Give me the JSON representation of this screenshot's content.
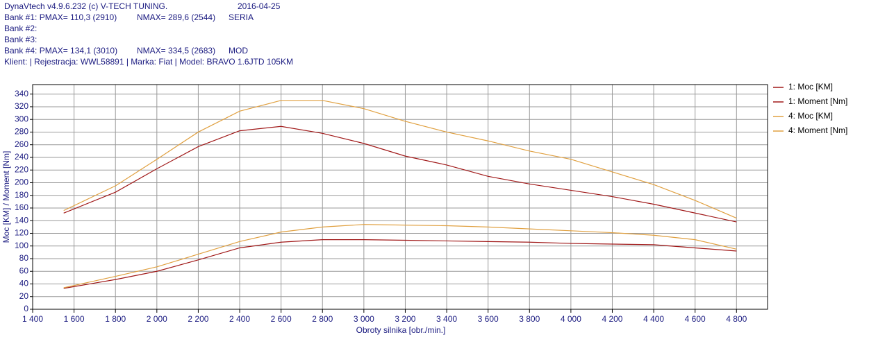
{
  "header": {
    "lines": [
      [
        "DynaVtech v4.9.6.232 (c) V-TECH TUNING.",
        "2016-04-25"
      ],
      [
        "Bank #1: PMAX= 110,3 (2910)",
        "NMAX= 289,6 (2544)",
        "SERIA"
      ],
      [
        "Bank #2:"
      ],
      [
        "Bank #3:"
      ],
      [
        "Bank #4: PMAX= 134,1 (3010)",
        "NMAX= 334,5 (2683)",
        "MOD"
      ],
      [
        "Klient:   | Rejestracja: WWL58891 | Marka: Fiat | Model: BRAVO 1.6JTD 105KM"
      ]
    ]
  },
  "chart_data": {
    "type": "line",
    "x_label": "Obroty silnika [obr./min.]",
    "y_label": "Moc [KM] / Moment [Nm]",
    "x": [
      1550,
      1800,
      2000,
      2200,
      2400,
      2600,
      2800,
      3000,
      3200,
      3400,
      3600,
      3800,
      4000,
      4200,
      4400,
      4600,
      4800
    ],
    "series": [
      {
        "name": "1: Moc [KM]",
        "color": "#a01818",
        "values": [
          33,
          47,
          60,
          78,
          97,
          106,
          110,
          110,
          109,
          108,
          107,
          106,
          104,
          103,
          102,
          97,
          92
        ]
      },
      {
        "name": "1: Moment [Nm]",
        "color": "#a01818",
        "values": [
          152,
          185,
          222,
          257,
          282,
          289,
          278,
          262,
          242,
          228,
          210,
          198,
          188,
          178,
          166,
          152,
          138
        ]
      },
      {
        "name": "4: Moc [KM]",
        "color": "#e0a040",
        "values": [
          34,
          52,
          67,
          87,
          107,
          122,
          130,
          134,
          133,
          132,
          130,
          127,
          124,
          121,
          117,
          110,
          95
        ]
      },
      {
        "name": "4: Moment [Nm]",
        "color": "#e0a040",
        "values": [
          156,
          195,
          237,
          280,
          313,
          330,
          330,
          317,
          297,
          280,
          266,
          250,
          237,
          217,
          197,
          172,
          144
        ]
      }
    ],
    "xlim": [
      1400,
      4950
    ],
    "ylim": [
      0,
      355
    ],
    "xticks": [
      {
        "value": 1400,
        "label": "1 400"
      },
      {
        "value": 1600,
        "label": "1 600"
      },
      {
        "value": 1800,
        "label": "1 800"
      },
      {
        "value": 2000,
        "label": "2 000"
      },
      {
        "value": 2200,
        "label": "2 200"
      },
      {
        "value": 2400,
        "label": "2 400"
      },
      {
        "value": 2600,
        "label": "2 600"
      },
      {
        "value": 2800,
        "label": "2 800"
      },
      {
        "value": 3000,
        "label": "3 000"
      },
      {
        "value": 3200,
        "label": "3 200"
      },
      {
        "value": 3400,
        "label": "3 400"
      },
      {
        "value": 3600,
        "label": "3 600"
      },
      {
        "value": 3800,
        "label": "3 800"
      },
      {
        "value": 4000,
        "label": "4 000"
      },
      {
        "value": 4200,
        "label": "4 200"
      },
      {
        "value": 4400,
        "label": "4 400"
      },
      {
        "value": 4600,
        "label": "4 600"
      },
      {
        "value": 4800,
        "label": "4 800"
      }
    ],
    "yticks": [
      0,
      20,
      40,
      60,
      80,
      100,
      120,
      140,
      160,
      180,
      200,
      220,
      240,
      260,
      280,
      300,
      320,
      340
    ],
    "grid": true,
    "legend": "right"
  }
}
